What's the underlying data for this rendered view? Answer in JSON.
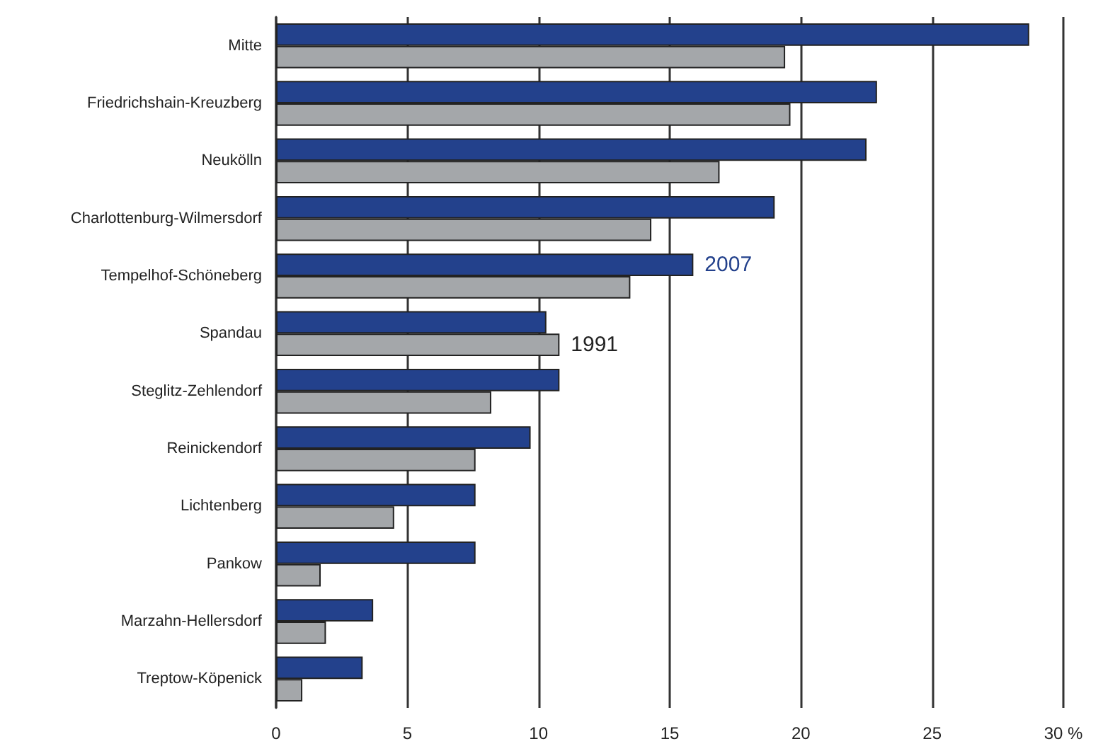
{
  "chart_data": {
    "type": "bar",
    "orientation": "horizontal",
    "categories": [
      "Mitte",
      "Friedrichshain-Kreuzberg",
      "Neukölln",
      "Charlottenburg-Wilmersdorf",
      "Tempelhof-Schöneberg",
      "Spandau",
      "Steglitz-Zehlendorf",
      "Reinickendorf",
      "Lichtenberg",
      "Pankow",
      "Marzahn-Hellersdorf",
      "Treptow-Köpenick"
    ],
    "series": [
      {
        "color": "#23418c",
        "values": [
          28.7,
          22.9,
          22.5,
          19.0,
          15.9,
          10.3,
          10.8,
          9.7,
          7.6,
          7.6,
          3.7,
          3.3
        ]
      },
      {
        "color": "#a4a7aa",
        "values": [
          19.4,
          19.6,
          16.9,
          14.3,
          13.5,
          10.8,
          8.2,
          7.6,
          4.5,
          1.7,
          1.9,
          1.0
        ]
      }
    ],
    "annotations": [
      {
        "text": "2007",
        "x": 15.9,
        "y": "Tempelhof-Schöneberg"
      },
      {
        "text": "1991",
        "x": 10.8,
        "y": "Spandau"
      }
    ],
    "xlim": [
      0,
      30
    ],
    "xticks": [
      0,
      5,
      10,
      15,
      20,
      25,
      {
        "value": 30,
        "label": "30 %"
      }
    ],
    "grid": "x"
  }
}
